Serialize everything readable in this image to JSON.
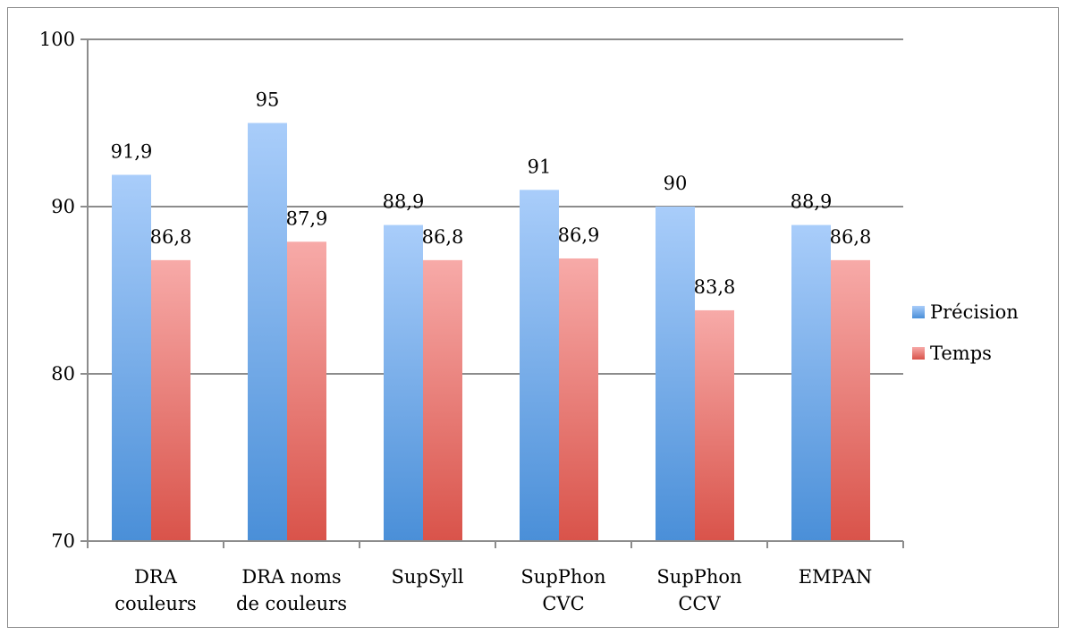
{
  "chart_data": {
    "type": "bar",
    "categories": [
      [
        "DRA",
        "couleurs"
      ],
      [
        "DRA noms",
        "de couleurs"
      ],
      [
        "SupSyll"
      ],
      [
        "SupPhon",
        "CVC"
      ],
      [
        "SupPhon",
        "CCV"
      ],
      [
        "EMPAN"
      ]
    ],
    "series": [
      {
        "name": "Précision",
        "values": [
          91.9,
          95,
          88.9,
          91,
          90,
          88.9
        ],
        "labels": [
          "91,9",
          "95",
          "88,9",
          "91",
          "90",
          "88,9"
        ],
        "color_top": "#a9cdfa",
        "color_bottom": "#4a8fd8"
      },
      {
        "name": "Temps",
        "values": [
          86.8,
          87.9,
          86.8,
          86.9,
          83.8,
          86.8
        ],
        "labels": [
          "86,8",
          "87,9",
          "86,8",
          "86,9",
          "83,8",
          "86,8"
        ],
        "color_top": "#f7aaa8",
        "color_bottom": "#d9534a"
      }
    ],
    "y_ticks": [
      {
        "value": 70,
        "label": "70"
      },
      {
        "value": 80,
        "label": "80"
      },
      {
        "value": 90,
        "label": "90"
      },
      {
        "value": 100,
        "label": "100"
      }
    ],
    "ylim": [
      70,
      100
    ],
    "grid": true,
    "legend_position": "right"
  }
}
